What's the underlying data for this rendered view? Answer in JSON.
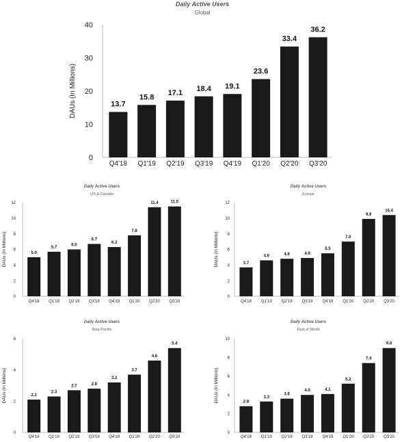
{
  "colors": {
    "bar": "#1a1a1a",
    "title": "#555555",
    "axis": "#bbbbbb",
    "text": "#222222"
  },
  "chart_data": [
    {
      "type": "bar",
      "title": "Daily Active Users",
      "subtitle": "Global",
      "ylabel": "DAUs (In Millions)",
      "xlabel": "",
      "categories": [
        "Q4'18",
        "Q1'19",
        "Q2'19",
        "Q3'19",
        "Q4'19",
        "Q1'20",
        "Q2'20",
        "Q3'20"
      ],
      "values": [
        13.7,
        15.8,
        17.1,
        18.4,
        19.1,
        23.6,
        33.4,
        36.2
      ],
      "value_labels": [
        "13.7",
        "15.8",
        "17.1",
        "18.4",
        "19.1",
        "23.6",
        "33.4",
        "36.2"
      ],
      "ylim": [
        0,
        40
      ],
      "yticks": [
        0,
        10,
        20,
        30,
        40
      ],
      "grid": false
    },
    {
      "type": "bar",
      "title": "Daily Active Users",
      "subtitle": "US & Canada",
      "ylabel": "DAUs (In Millions)",
      "xlabel": "",
      "categories": [
        "Q4'18",
        "Q1'19",
        "Q2'19",
        "Q3'19",
        "Q4'19",
        "Q1'20",
        "Q2'20",
        "Q3'20"
      ],
      "values": [
        5.0,
        5.7,
        6.0,
        6.7,
        6.3,
        7.8,
        11.4,
        11.5
      ],
      "value_labels": [
        "5.0",
        "5.7",
        "6.0",
        "6.7",
        "6.3",
        "7.8",
        "11.4",
        "11.5"
      ],
      "ylim": [
        0,
        12
      ],
      "yticks": [
        0,
        2,
        4,
        6,
        8,
        10,
        12
      ],
      "grid": false
    },
    {
      "type": "bar",
      "title": "Daily Active Users",
      "subtitle": "Europe",
      "ylabel": "DAUs (In Millions)",
      "xlabel": "",
      "categories": [
        "Q4'18",
        "Q1'19",
        "Q2'19",
        "Q3'19",
        "Q4'19",
        "Q1'20",
        "Q2'20",
        "Q3'20"
      ],
      "values": [
        3.7,
        4.6,
        4.8,
        4.9,
        5.5,
        7.0,
        9.9,
        10.4
      ],
      "value_labels": [
        "3.7",
        "4.6",
        "4.8",
        "4.9",
        "5.5",
        "7.0",
        "9.9",
        "10.4"
      ],
      "ylim": [
        0,
        12
      ],
      "yticks": [
        0,
        2,
        4,
        6,
        8,
        10,
        12
      ],
      "grid": false
    },
    {
      "type": "bar",
      "title": "Daily Active Users",
      "subtitle": "Asia-Pacific",
      "ylabel": "DAUs (In Millions)",
      "xlabel": "",
      "categories": [
        "Q4'18",
        "Q1'19",
        "Q2'19",
        "Q3'19",
        "Q4'19",
        "Q1'20",
        "Q2'20",
        "Q3'20"
      ],
      "values": [
        2.1,
        2.3,
        2.7,
        2.8,
        3.2,
        3.7,
        4.6,
        5.4
      ],
      "value_labels": [
        "2.1",
        "2.3",
        "2.7",
        "2.8",
        "3.2",
        "3.7",
        "4.6",
        "5.4"
      ],
      "ylim": [
        0,
        6
      ],
      "yticks": [
        0,
        2,
        4,
        6
      ],
      "grid": false
    },
    {
      "type": "bar",
      "title": "Daily Active Users",
      "subtitle": "Rest of World",
      "ylabel": "DAUs (In Millions)",
      "xlabel": "",
      "categories": [
        "Q4'18",
        "Q1'19",
        "Q2'19",
        "Q3'19",
        "Q4'19",
        "Q1'20",
        "Q2'20",
        "Q3'20"
      ],
      "values": [
        2.8,
        3.3,
        3.6,
        4.0,
        4.1,
        5.2,
        7.4,
        9.0
      ],
      "value_labels": [
        "2.8",
        "3.3",
        "3.6",
        "4.0",
        "4.1",
        "5.2",
        "7.4",
        "9.0"
      ],
      "ylim": [
        0,
        10
      ],
      "yticks": [
        0,
        2,
        4,
        6,
        8,
        10
      ],
      "grid": false
    }
  ]
}
